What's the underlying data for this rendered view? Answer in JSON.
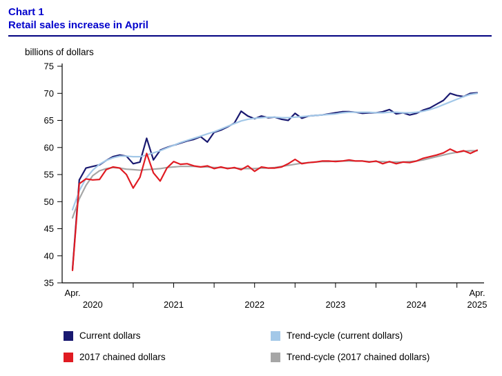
{
  "colors": {
    "title_blue": "#0202cc",
    "divider_navy": "#000080",
    "axis_black": "#000000"
  },
  "chart_data": {
    "type": "line",
    "title": "Chart 1",
    "subtitle": "Retail sales increase in April",
    "ylabel": "billions of dollars",
    "ylim": [
      35,
      75
    ],
    "ytick_step": 5,
    "x_start": "2020-04",
    "x_end": "2025-04",
    "frequency": "monthly",
    "grid": false,
    "legend_position": "bottom",
    "series": [
      {
        "name": "Current dollars",
        "color": "#191970",
        "values": [
          37.5,
          54.0,
          56.2,
          56.5,
          56.8,
          57.6,
          58.3,
          58.6,
          58.4,
          57.0,
          57.3,
          61.7,
          57.7,
          59.5,
          60.0,
          60.4,
          60.8,
          61.2,
          61.5,
          62.0,
          61.0,
          62.8,
          63.2,
          63.8,
          64.5,
          66.7,
          65.8,
          65.3,
          65.8,
          65.5,
          65.6,
          65.2,
          65.0,
          66.3,
          65.4,
          65.8,
          65.9,
          66.0,
          66.2,
          66.4,
          66.6,
          66.6,
          66.5,
          66.3,
          66.4,
          66.4,
          66.6,
          67.0,
          66.2,
          66.4,
          66.0,
          66.3,
          66.9,
          67.3,
          68.0,
          68.7,
          70.0,
          69.6,
          69.4,
          70.0,
          70.1
        ]
      },
      {
        "name": "Trend-cycle (current dollars)",
        "color": "#a3c8e8",
        "values": [
          48.5,
          52.0,
          54.3,
          55.8,
          56.9,
          57.6,
          58.1,
          58.4,
          58.4,
          58.3,
          58.3,
          58.6,
          59.0,
          59.4,
          59.9,
          60.4,
          60.9,
          61.3,
          61.7,
          62.1,
          62.5,
          62.9,
          63.4,
          63.9,
          64.4,
          64.9,
          65.2,
          65.4,
          65.5,
          65.6,
          65.6,
          65.5,
          65.5,
          65.6,
          65.7,
          65.8,
          65.9,
          66.0,
          66.1,
          66.2,
          66.4,
          66.5,
          66.5,
          66.5,
          66.5,
          66.4,
          66.4,
          66.5,
          66.5,
          66.4,
          66.4,
          66.5,
          66.7,
          67.0,
          67.4,
          67.9,
          68.4,
          68.9,
          69.4,
          69.8,
          70.0
        ]
      },
      {
        "name": "2017 chained dollars",
        "color": "#e01b22",
        "values": [
          37.3,
          53.3,
          54.2,
          54.0,
          54.1,
          55.9,
          56.4,
          56.2,
          55.0,
          52.5,
          54.5,
          58.9,
          55.3,
          53.8,
          56.2,
          57.4,
          56.9,
          57.0,
          56.6,
          56.4,
          56.6,
          56.1,
          56.4,
          56.1,
          56.3,
          55.9,
          56.6,
          55.6,
          56.4,
          56.2,
          56.2,
          56.4,
          57.0,
          57.8,
          57.0,
          57.2,
          57.3,
          57.5,
          57.5,
          57.4,
          57.5,
          57.7,
          57.5,
          57.5,
          57.3,
          57.5,
          57.0,
          57.4,
          57.0,
          57.3,
          57.2,
          57.5,
          58.0,
          58.3,
          58.6,
          59.0,
          59.7,
          59.1,
          59.4,
          58.9,
          59.5
        ]
      },
      {
        "name": "Trend-cycle (2017 chained dollars)",
        "color": "#a6a6a6",
        "values": [
          47.0,
          50.5,
          53.0,
          54.8,
          55.7,
          56.1,
          56.3,
          56.2,
          56.0,
          55.9,
          55.8,
          55.9,
          56.0,
          56.1,
          56.3,
          56.4,
          56.5,
          56.5,
          56.5,
          56.4,
          56.4,
          56.3,
          56.3,
          56.2,
          56.2,
          56.1,
          56.1,
          56.1,
          56.2,
          56.2,
          56.3,
          56.5,
          56.7,
          56.9,
          57.1,
          57.2,
          57.3,
          57.4,
          57.4,
          57.5,
          57.5,
          57.5,
          57.5,
          57.5,
          57.4,
          57.4,
          57.4,
          57.3,
          57.3,
          57.3,
          57.4,
          57.5,
          57.7,
          58.0,
          58.3,
          58.6,
          58.9,
          59.1,
          59.3,
          59.4,
          59.4
        ]
      }
    ],
    "x_axis": {
      "tick_month_indices": [
        9,
        15,
        21,
        27,
        33,
        39,
        45,
        51,
        57
      ],
      "row1_labels": [
        {
          "index": 0,
          "text": "Apr."
        },
        {
          "index": 60,
          "text": "Apr."
        }
      ],
      "row2_labels": [
        {
          "index": 3,
          "text": "2020"
        },
        {
          "index": 15,
          "text": "2021"
        },
        {
          "index": 27,
          "text": "2022"
        },
        {
          "index": 39,
          "text": "2023"
        },
        {
          "index": 51,
          "text": "2024"
        },
        {
          "index": 60,
          "text": "2025"
        }
      ]
    }
  }
}
